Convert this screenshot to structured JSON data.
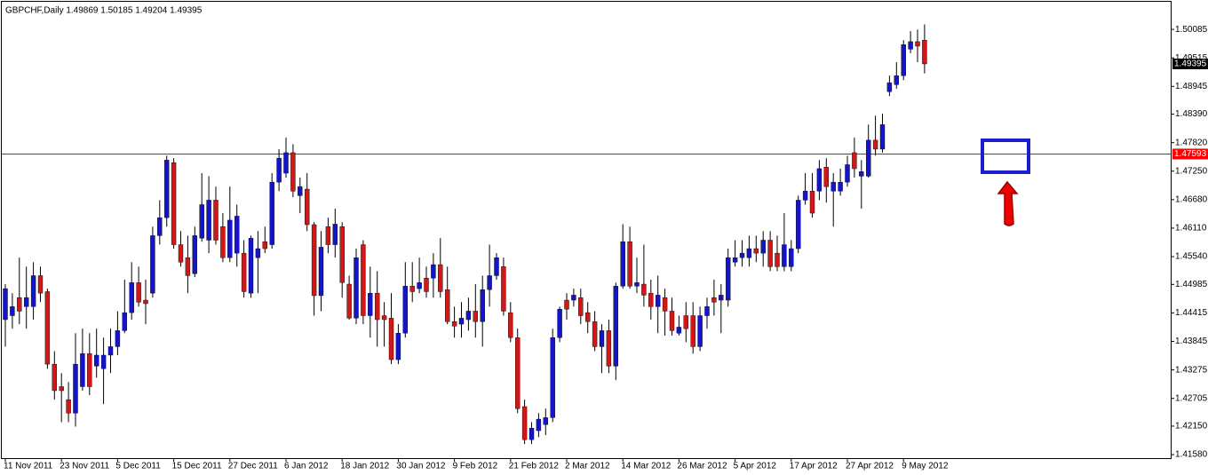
{
  "chart_data": {
    "type": "candlestick",
    "title": "GBPCHF,Daily  1.49869 1.50185 1.49204 1.49395",
    "categories": [
      "11 Nov 2011",
      null,
      null,
      null,
      null,
      null,
      null,
      null,
      "23 Nov 2011",
      null,
      null,
      null,
      null,
      null,
      null,
      null,
      "5 Dec 2011",
      null,
      null,
      null,
      null,
      null,
      null,
      null,
      "15 Dec 2011",
      null,
      null,
      null,
      null,
      null,
      null,
      null,
      "27 Dec 2011",
      null,
      null,
      null,
      null,
      null,
      null,
      null,
      "6 Jan 2012",
      null,
      null,
      null,
      null,
      null,
      null,
      null,
      "18 Jan 2012",
      null,
      null,
      null,
      null,
      null,
      null,
      null,
      "30 Jan 2012",
      null,
      null,
      null,
      null,
      null,
      null,
      null,
      "9 Feb 2012",
      null,
      null,
      null,
      null,
      null,
      null,
      null,
      "21 Feb 2012",
      null,
      null,
      null,
      null,
      null,
      null,
      null,
      "2 Mar 2012",
      null,
      null,
      null,
      null,
      null,
      null,
      null,
      "14 Mar 2012",
      null,
      null,
      null,
      null,
      null,
      null,
      null,
      "26 Mar 2012",
      null,
      null,
      null,
      null,
      null,
      null,
      null,
      "5 Apr 2012",
      null,
      null,
      null,
      null,
      null,
      null,
      null,
      "17 Apr 2012",
      null,
      null,
      null,
      null,
      null,
      null,
      null,
      "27 Apr 2012",
      null,
      null,
      null,
      null,
      null,
      null,
      null,
      "9 May 2012",
      null,
      null,
      null
    ],
    "open": [
      1.4428,
      1.4436,
      1.4472,
      1.4454,
      1.4454,
      1.4516,
      1.4484,
      1.4339,
      1.4294,
      1.4268,
      1.4241,
      1.4294,
      1.436,
      1.4335,
      1.433,
      1.4357,
      1.4374,
      1.4406,
      1.4442,
      1.4502,
      1.4467,
      1.4481,
      1.4596,
      1.4632,
      1.4742,
      1.4578,
      1.4552,
      1.452,
      1.4591,
      1.4587,
      1.4667,
      1.4614,
      1.4552,
      1.4561,
      1.4561,
      1.4481,
      1.4552,
      1.4584,
      1.4578,
      1.4703,
      1.4721,
      1.4762,
      1.4676,
      1.4689,
      1.4618,
      1.4476,
      1.4614,
      1.4578,
      1.4614,
      1.4499,
      1.4431,
      1.4578,
      1.4436,
      1.4481,
      1.4436,
      1.4431,
      1.4348,
      1.4401,
      1.4495,
      1.449,
      1.4511,
      1.4511,
      1.4538,
      1.4488,
      1.4424,
      1.4419,
      1.4428,
      1.4445,
      1.4424,
      1.4488,
      1.4516,
      1.4534,
      1.4442,
      1.4392,
      1.4254,
      1.4188,
      1.4206,
      1.4218,
      1.4232,
      1.4392,
      1.4467,
      1.4467,
      1.4472,
      1.4442,
      1.4424,
      1.4374,
      1.4406,
      1.4335,
      1.4495,
      1.4584,
      1.4495,
      1.4499,
      1.4481,
      1.4454,
      1.4472,
      1.4445,
      1.4401,
      1.4436,
      1.4436,
      1.4374,
      1.4436,
      1.4472,
      1.4467,
      1.4467,
      1.4543,
      1.4552,
      1.4552,
      1.457,
      1.4561,
      1.4587,
      1.4561,
      1.4534,
      1.4534,
      1.457,
      1.4667,
      1.4685,
      1.4685,
      1.4733,
      1.4685,
      1.4685,
      1.4703,
      1.4762,
      1.4715,
      1.4715,
      1.4787,
      1.4769,
      1.4884,
      1.4898,
      1.4916,
      1.4969,
      1.4984,
      1.49869
    ],
    "high": [
      1.4499,
      1.4481,
      1.4552,
      1.4534,
      1.4543,
      1.4534,
      1.449,
      1.4365,
      1.4321,
      1.4303,
      1.4401,
      1.441,
      1.4401,
      1.441,
      1.4392,
      1.441,
      1.4445,
      1.4508,
      1.4543,
      1.4534,
      1.4508,
      1.4614,
      1.4667,
      1.4756,
      1.4751,
      1.4605,
      1.4596,
      1.4614,
      1.4721,
      1.4715,
      1.4694,
      1.4641,
      1.4694,
      1.4658,
      1.4587,
      1.4596,
      1.4605,
      1.4614,
      1.4721,
      1.4769,
      1.4792,
      1.4779,
      1.4712,
      1.4721,
      1.4623,
      1.4605,
      1.4632,
      1.465,
      1.4623,
      1.4516,
      1.457,
      1.4587,
      1.4534,
      1.4525,
      1.4463,
      1.4481,
      1.4419,
      1.4543,
      1.4543,
      1.4552,
      1.4534,
      1.4561,
      1.4591,
      1.4534,
      1.4454,
      1.4463,
      1.4472,
      1.4499,
      1.4516,
      1.4578,
      1.4561,
      1.4552,
      1.4463,
      1.441,
      1.4268,
      1.4223,
      1.4241,
      1.425,
      1.441,
      1.4454,
      1.4481,
      1.449,
      1.449,
      1.4463,
      1.4445,
      1.4419,
      1.4428,
      1.4502,
      1.4619,
      1.4614,
      1.4552,
      1.4578,
      1.4508,
      1.4516,
      1.449,
      1.4472,
      1.4436,
      1.4463,
      1.4463,
      1.4454,
      1.4472,
      1.4508,
      1.4499,
      1.457,
      1.4587,
      1.4587,
      1.4596,
      1.4596,
      1.4605,
      1.4605,
      1.4596,
      1.4641,
      1.4587,
      1.4676,
      1.4721,
      1.4721,
      1.4747,
      1.4751,
      1.4721,
      1.473,
      1.4756,
      1.4792,
      1.4747,
      1.4818,
      1.4836,
      1.484,
      1.4916,
      1.4943,
      1.4987,
      1.5005,
      1.5008,
      1.50185
    ],
    "low": [
      1.4374,
      1.441,
      1.4419,
      1.441,
      1.4428,
      1.4463,
      1.433,
      1.4268,
      1.4223,
      1.4223,
      1.4214,
      1.4286,
      1.4277,
      1.4312,
      1.4259,
      1.4321,
      1.4357,
      1.4401,
      1.4428,
      1.4454,
      1.4419,
      1.4472,
      1.4578,
      1.4614,
      1.457,
      1.4534,
      1.4481,
      1.4513,
      1.4584,
      1.4561,
      1.4578,
      1.4543,
      1.4543,
      1.4534,
      1.4472,
      1.4472,
      1.4481,
      1.4561,
      1.457,
      1.4685,
      1.4712,
      1.4673,
      1.4641,
      1.4605,
      1.4436,
      1.4445,
      1.4561,
      1.4552,
      1.4472,
      1.4428,
      1.4419,
      1.4419,
      1.4392,
      1.4374,
      1.4374,
      1.4339,
      1.4339,
      1.4392,
      1.4463,
      1.4481,
      1.4472,
      1.4472,
      1.4472,
      1.4419,
      1.4392,
      1.4392,
      1.4406,
      1.4392,
      1.4374,
      1.4454,
      1.4508,
      1.4436,
      1.4383,
      1.4241,
      1.4179,
      1.4179,
      1.4193,
      1.4197,
      1.4223,
      1.4383,
      1.4428,
      1.4454,
      1.4419,
      1.4401,
      1.4365,
      1.4321,
      1.4321,
      1.4307,
      1.449,
      1.449,
      1.4481,
      1.4454,
      1.4428,
      1.4401,
      1.4396,
      1.4396,
      1.4396,
      1.4383,
      1.436,
      1.4365,
      1.441,
      1.4436,
      1.4401,
      1.4454,
      1.4534,
      1.4534,
      1.4534,
      1.4543,
      1.4534,
      1.4525,
      1.4525,
      1.4525,
      1.4525,
      1.4561,
      1.4658,
      1.4632,
      1.4667,
      1.4662,
      1.4614,
      1.4676,
      1.4694,
      1.4712,
      1.465,
      1.4712,
      1.4756,
      1.4762,
      1.4875,
      1.489,
      1.4907,
      1.4961,
      1.4943,
      1.49204
    ],
    "close": [
      1.449,
      1.4454,
      1.4445,
      1.4472,
      1.4516,
      1.4481,
      1.4339,
      1.4286,
      1.4286,
      1.4241,
      1.4339,
      1.436,
      1.4294,
      1.4357,
      1.4357,
      1.4374,
      1.4406,
      1.4442,
      1.4502,
      1.4463,
      1.446,
      1.4596,
      1.4632,
      1.4747,
      1.4578,
      1.4543,
      1.4516,
      1.4596,
      1.4658,
      1.4667,
      1.4587,
      1.4552,
      1.4627,
      1.4635,
      1.4484,
      1.4591,
      1.457,
      1.457,
      1.4703,
      1.4751,
      1.4762,
      1.4685,
      1.4694,
      1.4618,
      1.4476,
      1.4573,
      1.4578,
      1.4619,
      1.4502,
      1.4431,
      1.4552,
      1.4436,
      1.4481,
      1.4428,
      1.4428,
      1.4348,
      1.4401,
      1.4495,
      1.4484,
      1.4502,
      1.4484,
      1.4538,
      1.4484,
      1.4424,
      1.4415,
      1.4431,
      1.4445,
      1.4424,
      1.4488,
      1.4516,
      1.4552,
      1.4445,
      1.4392,
      1.425,
      1.4188,
      1.4211,
      1.4229,
      1.4232,
      1.4392,
      1.4449,
      1.4449,
      1.4477,
      1.4436,
      1.4424,
      1.4374,
      1.4406,
      1.4335,
      1.4495,
      1.4584,
      1.4495,
      1.4502,
      1.4477,
      1.4454,
      1.4477,
      1.4445,
      1.4406,
      1.4413,
      1.441,
      1.4374,
      1.4436,
      1.4454,
      1.4463,
      1.4477,
      1.4552,
      1.4552,
      1.4561,
      1.457,
      1.4561,
      1.4587,
      1.4534,
      1.4534,
      1.4578,
      1.457,
      1.4667,
      1.4685,
      1.4641,
      1.473,
      1.4694,
      1.4703,
      1.4703,
      1.4738,
      1.473,
      1.4724,
      1.4787,
      1.4769,
      1.4818,
      1.4902,
      1.4916,
      1.4978,
      1.4984,
      1.4975,
      1.49395
    ],
    "up_color": "#1414c8",
    "down_color": "#d01818",
    "ylim": [
      1.4151,
      1.5062
    ],
    "yticks": [
      1.50085,
      1.49515,
      1.48945,
      {
        "value": 1.4839,
        "label": "1.48390"
      },
      {
        "value": 1.4782,
        "label": "1.47820"
      },
      {
        "value": 1.4725,
        "label": "1.47250"
      },
      {
        "value": 1.4668,
        "label": "1.46680"
      },
      {
        "value": 1.4611,
        "label": "1.46110"
      },
      {
        "value": 1.4554,
        "label": "1.45540"
      },
      1.44985,
      1.44415,
      1.43845,
      1.43275,
      1.42705,
      {
        "value": 1.4215,
        "label": "1.42150"
      },
      {
        "value": 1.4158,
        "label": "1.41580"
      }
    ],
    "price_lines": [
      {
        "value": 1.47593,
        "color": "#ff0000"
      }
    ],
    "last_price": {
      "value": 1.49395,
      "color": "#000000"
    }
  }
}
